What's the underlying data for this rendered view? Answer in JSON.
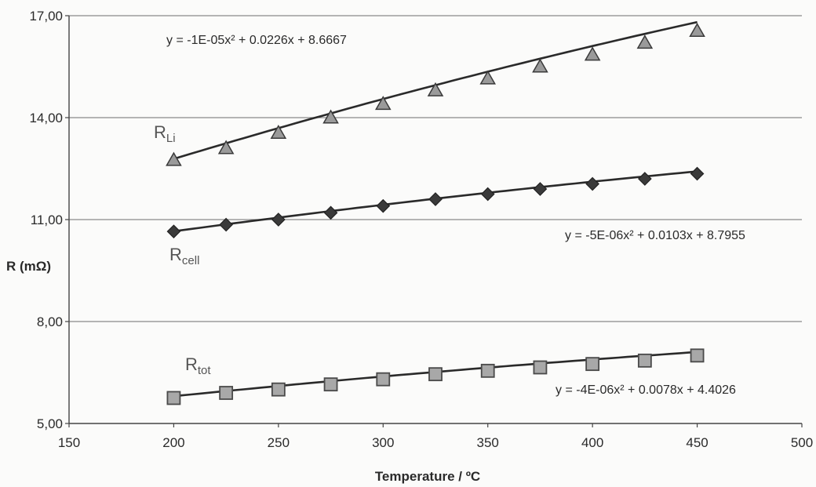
{
  "chart_data": {
    "type": "scatter",
    "title": "",
    "xlabel": "Temperature / ºC",
    "ylabel": "R (mΩ)",
    "xlim": [
      150,
      500
    ],
    "ylim": [
      5,
      17
    ],
    "xticks": [
      150,
      200,
      250,
      300,
      350,
      400,
      450,
      500
    ],
    "xtick_labels": [
      "150",
      "200",
      "250",
      "300",
      "350",
      "400",
      "450",
      "500"
    ],
    "yticks": [
      5,
      8,
      11,
      14,
      17
    ],
    "ytick_labels": [
      "5,00",
      "8,00",
      "11,00",
      "14,00",
      "17,00"
    ],
    "grid": "horizontal",
    "x": [
      200,
      225,
      250,
      275,
      300,
      325,
      350,
      375,
      400,
      425,
      450
    ],
    "series": [
      {
        "label_main": "R",
        "label_sub": "Li",
        "marker": "triangle",
        "color": "#4a4a4a",
        "values": [
          12.75,
          13.1,
          13.55,
          14.0,
          14.4,
          14.8,
          15.15,
          15.5,
          15.85,
          16.2,
          16.55
        ],
        "trendline": "y = -1E-05x² + 0.0226x + 8.6667",
        "fit": [
          -1e-05,
          0.0226,
          8.6667
        ]
      },
      {
        "label_main": "R",
        "label_sub": "cell",
        "marker": "diamond",
        "color": "#333333",
        "values": [
          10.65,
          10.85,
          11.0,
          11.2,
          11.4,
          11.6,
          11.75,
          11.9,
          12.05,
          12.2,
          12.35
        ],
        "trendline": "y = -5E-06x² + 0.0103x + 8.7955",
        "fit": [
          -5e-06,
          0.0103,
          8.7955
        ]
      },
      {
        "label_main": "R",
        "label_sub": "tot",
        "marker": "square",
        "color": "#6a6a6a",
        "values": [
          5.75,
          5.9,
          6.0,
          6.15,
          6.3,
          6.45,
          6.55,
          6.65,
          6.75,
          6.85,
          7.0
        ],
        "trendline": "y = -4E-06x² + 0.0078x + 4.4026",
        "fit": [
          -4e-06,
          0.0078,
          4.4026
        ]
      }
    ]
  }
}
